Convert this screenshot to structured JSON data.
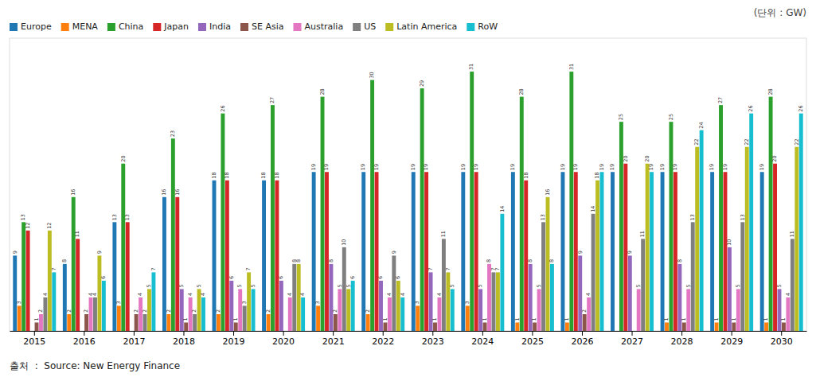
{
  "chart_data": {
    "type": "bar",
    "ylabel": "(단위 : GW)",
    "annotations": [
      "출처  :  Source: New Energy Finance"
    ],
    "categories": [
      "2015",
      "2016",
      "2017",
      "2018",
      "2019",
      "2020",
      "2021",
      "2022",
      "2023",
      "2024",
      "2025",
      "2026",
      "2027",
      "2028",
      "2029",
      "2030"
    ],
    "series": [
      {
        "name": "Europe",
        "values": [
          9,
          8,
          13,
          16,
          18,
          18,
          19,
          19,
          19,
          19,
          19,
          19,
          19,
          19,
          19,
          19
        ]
      },
      {
        "name": "MENA",
        "values": [
          3,
          2,
          3,
          2,
          2,
          2,
          3,
          2,
          3,
          3,
          1,
          1,
          0,
          1,
          1,
          1
        ]
      },
      {
        "name": "China",
        "values": [
          13,
          16,
          20,
          23,
          26,
          27,
          28,
          30,
          29,
          31,
          28,
          31,
          25,
          25,
          27,
          28
        ]
      },
      {
        "name": "Japan",
        "values": [
          12,
          11,
          13,
          16,
          18,
          18,
          19,
          19,
          19,
          19,
          18,
          19,
          20,
          19,
          19,
          20
        ]
      },
      {
        "name": "India",
        "values": [
          0,
          0,
          0,
          5,
          6,
          6,
          8,
          6,
          7,
          5,
          8,
          9,
          9,
          8,
          10,
          5
        ]
      },
      {
        "name": "SE Asia",
        "values": [
          1,
          2,
          2,
          1,
          1,
          0,
          2,
          1,
          1,
          1,
          1,
          2,
          0,
          1,
          1,
          1
        ]
      },
      {
        "name": "Australia",
        "values": [
          2,
          4,
          4,
          4,
          5,
          4,
          5,
          4,
          4,
          8,
          5,
          4,
          5,
          5,
          5,
          4
        ]
      },
      {
        "name": "US",
        "values": [
          4,
          4,
          2,
          2,
          3,
          8,
          10,
          9,
          11,
          7,
          13,
          14,
          11,
          13,
          13,
          11
        ]
      },
      {
        "name": "Latin America",
        "values": [
          12,
          9,
          5,
          5,
          7,
          8,
          5,
          6,
          7,
          7,
          16,
          18,
          20,
          22,
          22,
          22
        ]
      },
      {
        "name": "RoW",
        "values": [
          7,
          6,
          7,
          4,
          5,
          4,
          6,
          4,
          5,
          14,
          8,
          19,
          19,
          24,
          26,
          26
        ]
      }
    ],
    "ylim": [
      0,
      35
    ],
    "data_labels": true,
    "tick_labels": "x",
    "legend": "upper left"
  }
}
